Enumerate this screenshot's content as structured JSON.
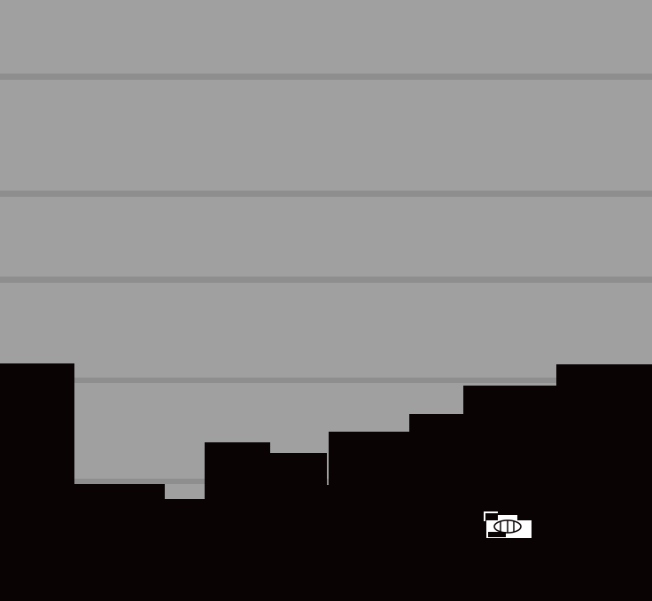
{
  "scene": {
    "sky_color": "#a0a0a0",
    "stripe_color": "#8e8e8e",
    "ground_color": "#090304"
  },
  "player": {
    "icon": "tank-sprite-icon",
    "color": "#ffffff"
  }
}
